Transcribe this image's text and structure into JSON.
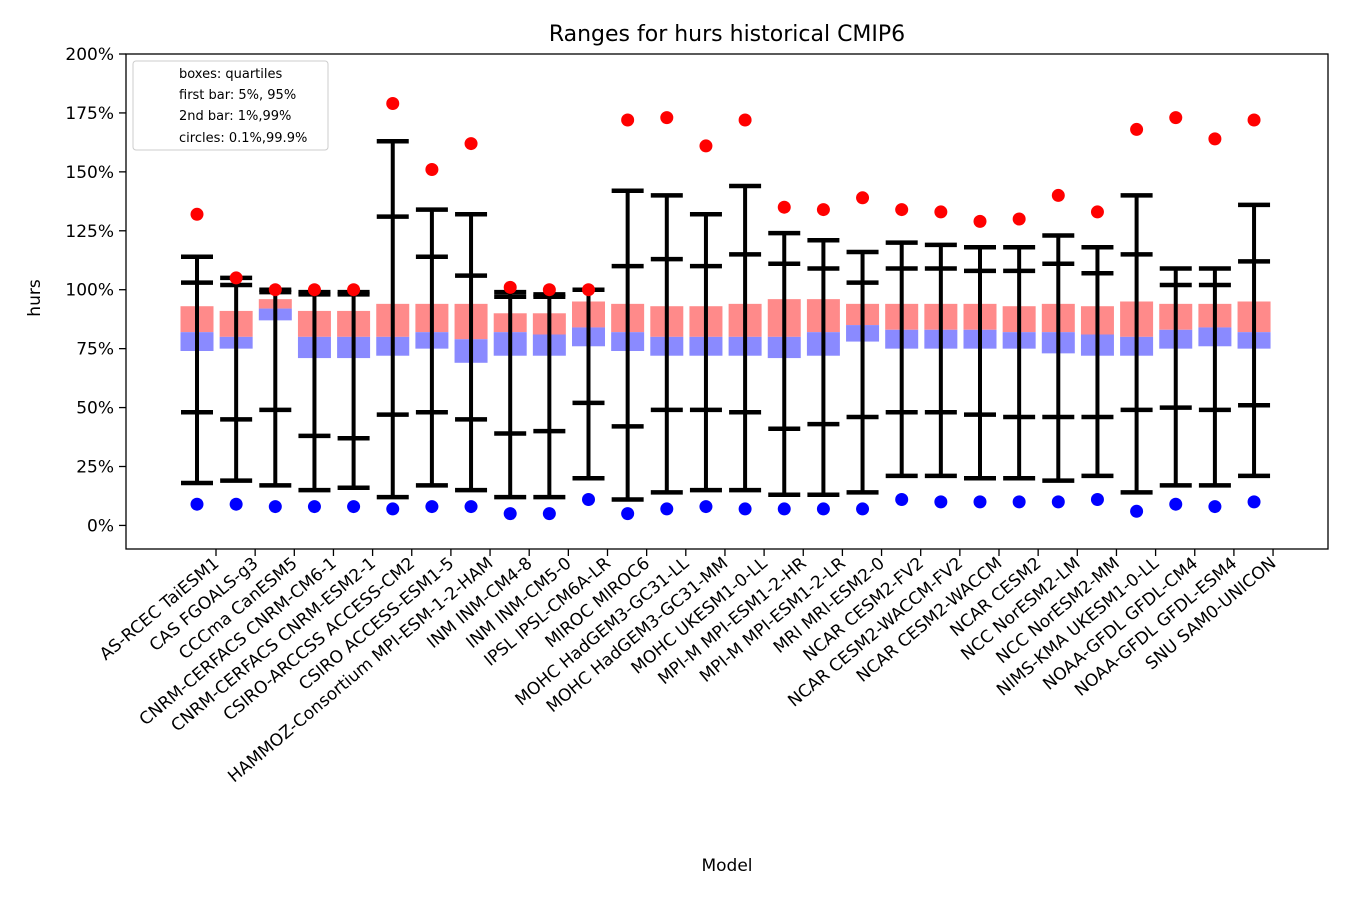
{
  "chart_data": {
    "type": "box-range",
    "title": "Ranges for hurs historical CMIP6",
    "xlabel": "Model",
    "ylabel": "hurs",
    "ylim": [
      -10,
      200
    ],
    "yticks": [
      0,
      25,
      50,
      75,
      100,
      125,
      150,
      175,
      200
    ],
    "ytick_labels": [
      "0%",
      "25%",
      "50%",
      "75%",
      "100%",
      "125%",
      "150%",
      "175%",
      "200%"
    ],
    "legend": {
      "position": "top-left",
      "entries": [
        "boxes: quartiles",
        "first bar: 5%, 95%",
        "2nd bar: 1%,99%",
        "circles: 0.1%,99.9%"
      ]
    },
    "colors": {
      "upper_box": "#ff8a8a",
      "lower_box": "#8a8aff",
      "bars": "#000000",
      "high_circle": "#ff0000",
      "low_circle": "#0000ff"
    },
    "categories": [
      "AS-RCEC TaiESM1",
      "CAS FGOALS-g3",
      "CCCma CanESM5",
      "CNRM-CERFACS CNRM-CM6-1",
      "CNRM-CERFACS CNRM-ESM2-1",
      "CSIRO-ARCCSS ACCESS-CM2",
      "CSIRO ACCESS-ESM1-5",
      "HAMMOZ-Consortium MPI-ESM-1-2-HAM",
      "INM INM-CM4-8",
      "INM INM-CM5-0",
      "IPSL IPSL-CM6A-LR",
      "MIROC MIROC6",
      "MOHC HadGEM3-GC31-LL",
      "MOHC HadGEM3-GC31-MM",
      "MOHC UKESM1-0-LL",
      "MPI-M MPI-ESM1-2-HR",
      "MPI-M MPI-ESM1-2-LR",
      "MRI MRI-ESM2-0",
      "NCAR CESM2-FV2",
      "NCAR CESM2-WACCM-FV2",
      "NCAR CESM2-WACCM",
      "NCAR CESM2",
      "NCC NorESM2-LM",
      "NCC NorESM2-MM",
      "NIMS-KMA UKESM1-0-LL",
      "NOAA-GFDL GFDL-CM4",
      "NOAA-GFDL GFDL-ESM4",
      "SNU SAM0-UNICON"
    ],
    "series": [
      {
        "name": "q25",
        "values": [
          74,
          75,
          87,
          71,
          71,
          72,
          75,
          69,
          72,
          72,
          76,
          74,
          72,
          72,
          72,
          71,
          72,
          78,
          75,
          75,
          75,
          75,
          73,
          72,
          72,
          75,
          76,
          75
        ]
      },
      {
        "name": "median",
        "values": [
          82,
          80,
          92,
          80,
          80,
          80,
          82,
          79,
          82,
          81,
          84,
          82,
          80,
          80,
          80,
          80,
          82,
          85,
          83,
          83,
          83,
          82,
          82,
          81,
          80,
          83,
          84,
          82
        ]
      },
      {
        "name": "q75",
        "values": [
          93,
          91,
          96,
          91,
          91,
          94,
          94,
          94,
          90,
          90,
          95,
          94,
          93,
          93,
          94,
          96,
          96,
          94,
          94,
          94,
          94,
          93,
          94,
          93,
          95,
          94,
          94,
          95
        ]
      },
      {
        "name": "p5",
        "values": [
          48,
          45,
          49,
          38,
          37,
          47,
          48,
          45,
          39,
          40,
          52,
          42,
          49,
          49,
          48,
          41,
          43,
          46,
          48,
          48,
          47,
          46,
          46,
          46,
          49,
          50,
          49,
          51
        ]
      },
      {
        "name": "p95",
        "values": [
          103,
          102,
          99,
          98,
          98,
          131,
          114,
          106,
          97,
          97,
          100,
          110,
          113,
          110,
          115,
          111,
          109,
          103,
          109,
          109,
          108,
          108,
          111,
          107,
          115,
          102,
          102,
          112
        ]
      },
      {
        "name": "p1",
        "values": [
          18,
          19,
          17,
          15,
          16,
          12,
          17,
          15,
          12,
          12,
          20,
          11,
          14,
          15,
          15,
          13,
          13,
          14,
          21,
          21,
          20,
          20,
          19,
          21,
          14,
          17,
          17,
          21
        ]
      },
      {
        "name": "p99",
        "values": [
          114,
          105,
          100,
          99,
          99,
          163,
          134,
          132,
          99,
          98,
          100,
          142,
          140,
          132,
          144,
          124,
          121,
          116,
          120,
          119,
          118,
          118,
          123,
          118,
          140,
          109,
          109,
          136
        ]
      },
      {
        "name": "p0_1",
        "values": [
          9,
          9,
          8,
          8,
          8,
          7,
          8,
          8,
          5,
          5,
          11,
          5,
          7,
          8,
          7,
          7,
          7,
          7,
          11,
          10,
          10,
          10,
          10,
          11,
          6,
          9,
          8,
          10
        ]
      },
      {
        "name": "p99_9",
        "values": [
          132,
          105,
          100,
          100,
          100,
          179,
          151,
          162,
          101,
          100,
          100,
          172,
          173,
          161,
          172,
          135,
          134,
          139,
          134,
          133,
          129,
          130,
          140,
          133,
          168,
          173,
          164,
          172
        ]
      }
    ]
  }
}
